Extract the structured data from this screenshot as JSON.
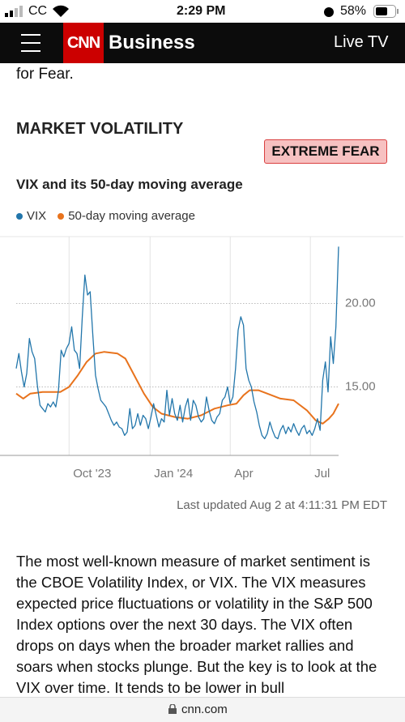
{
  "status": {
    "carrier": "CC",
    "time": "2:29 PM",
    "battery": "58%"
  },
  "nav": {
    "logo": "CNN",
    "section": "Business",
    "live": "Live TV"
  },
  "intro_tail": "for Fear.",
  "section_title": "MARKET VOLATILITY",
  "badge": "EXTREME FEAR",
  "chart_data": {
    "type": "line",
    "title": "VIX and its 50-day moving average",
    "xlim": [
      0,
      366
    ],
    "xticks": [
      {
        "value": 60,
        "label": "Oct '23"
      },
      {
        "value": 152,
        "label": "Jan '24"
      },
      {
        "value": 243,
        "label": "Apr"
      },
      {
        "value": 334,
        "label": "Jul"
      }
    ],
    "ylim": [
      10.9,
      24.0
    ],
    "yticks": [
      {
        "value": 15,
        "label": "15.00"
      },
      {
        "value": 20,
        "label": "20.00"
      }
    ],
    "grid": true,
    "series": [
      {
        "name": "VIX",
        "color": "#2276ab",
        "x": [
          0,
          3,
          6,
          9,
          12,
          15,
          18,
          21,
          24,
          27,
          30,
          33,
          36,
          39,
          42,
          45,
          48,
          51,
          54,
          57,
          60,
          63,
          66,
          69,
          72,
          75,
          78,
          81,
          84,
          87,
          90,
          93,
          96,
          99,
          102,
          105,
          108,
          111,
          114,
          117,
          120,
          123,
          126,
          129,
          132,
          135,
          138,
          141,
          144,
          147,
          150,
          153,
          156,
          159,
          162,
          165,
          168,
          171,
          174,
          177,
          180,
          183,
          186,
          189,
          192,
          195,
          198,
          201,
          204,
          207,
          210,
          213,
          216,
          219,
          222,
          225,
          228,
          231,
          234,
          237,
          240,
          243,
          246,
          249,
          252,
          255,
          258,
          261,
          264,
          267,
          270,
          273,
          276,
          279,
          282,
          285,
          288,
          291,
          294,
          297,
          300,
          303,
          306,
          309,
          312,
          315,
          318,
          321,
          324,
          327,
          330,
          333,
          336,
          339,
          342,
          345,
          348,
          351,
          354,
          357,
          360,
          363,
          366
        ],
        "values": [
          16.1,
          17.0,
          15.9,
          15.0,
          15.8,
          17.9,
          17.1,
          16.7,
          15.1,
          13.9,
          13.7,
          13.5,
          14.0,
          13.8,
          14.1,
          13.8,
          14.8,
          17.2,
          16.8,
          17.3,
          17.6,
          18.6,
          17.2,
          17.0,
          16.1,
          19.2,
          21.7,
          20.5,
          20.7,
          18.1,
          15.7,
          14.9,
          14.2,
          14.0,
          13.8,
          13.4,
          13.0,
          12.7,
          12.9,
          12.6,
          12.5,
          12.1,
          12.3,
          13.7,
          12.5,
          12.7,
          13.4,
          12.7,
          13.3,
          13.1,
          12.5,
          13.2,
          14.0,
          13.3,
          12.6,
          13.1,
          12.9,
          14.8,
          13.3,
          14.3,
          13.4,
          13.0,
          13.9,
          12.9,
          13.8,
          14.3,
          13.0,
          14.2,
          13.9,
          13.2,
          12.9,
          13.1,
          14.4,
          13.6,
          13.0,
          12.8,
          13.2,
          13.4,
          14.2,
          14.4,
          15.0,
          14.0,
          14.4,
          16.1,
          18.4,
          19.2,
          18.7,
          16.1,
          15.4,
          15.0,
          14.1,
          13.5,
          12.7,
          12.1,
          11.9,
          12.2,
          12.9,
          12.4,
          12.0,
          11.9,
          12.4,
          12.7,
          12.2,
          12.6,
          12.3,
          12.8,
          12.4,
          12.1,
          12.5,
          12.7,
          12.2,
          12.4,
          12.1,
          12.5,
          13.1,
          12.4,
          15.4,
          16.5,
          14.7,
          18.0,
          16.4,
          18.6,
          23.4
        ]
      },
      {
        "name": "50-day moving average",
        "color": "#e8731d",
        "x": [
          0,
          8,
          16,
          30,
          50,
          60,
          70,
          80,
          90,
          100,
          115,
          124,
          135,
          145,
          155,
          165,
          180,
          195,
          210,
          225,
          240,
          250,
          258,
          265,
          275,
          285,
          300,
          315,
          330,
          340,
          348,
          355,
          360,
          366
        ],
        "values": [
          14.6,
          14.3,
          14.6,
          14.7,
          14.7,
          15.0,
          15.7,
          16.5,
          17.0,
          17.1,
          17.0,
          16.7,
          15.6,
          14.6,
          13.8,
          13.4,
          13.2,
          13.1,
          13.3,
          13.7,
          13.9,
          14.0,
          14.5,
          14.8,
          14.8,
          14.6,
          14.3,
          14.2,
          13.6,
          13.0,
          12.8,
          13.1,
          13.4,
          14.0
        ]
      }
    ]
  },
  "updated": "Last updated Aug 2 at 4:11:31 PM EDT",
  "paragraph": "The most well-known measure of market sentiment is the CBOE Volatility Index, or VIX. The VIX measures expected price fluctuations or volatility in the S&P 500 Index options over the next 30 days. The VIX often drops on days when the broader market rallies and soars when stocks plunge. But the key is to look at the VIX over time. It tends to be lower in bull",
  "url": "cnn.com"
}
